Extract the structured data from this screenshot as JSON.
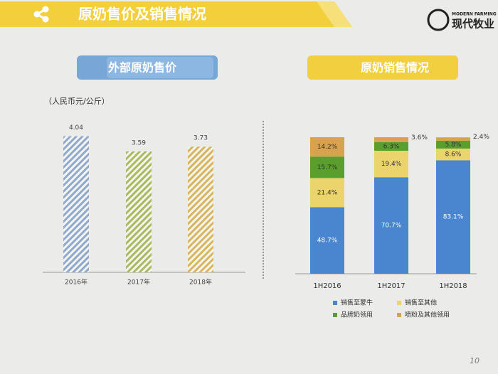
{
  "header": {
    "title": "原奶售价及销售情况",
    "logo_en": "MODERN FARMING",
    "logo_cn": "现代牧业"
  },
  "page_number": "10",
  "chart_data": [
    {
      "type": "bar",
      "title": "外部原奶售价",
      "subtitle": "（人民币元/公斤）",
      "categories": [
        "2016年",
        "2017年",
        "2018年"
      ],
      "values": [
        4.04,
        3.59,
        3.73
      ],
      "colors": [
        "#90a9cc",
        "#a9bb5e",
        "#d9b65c"
      ],
      "ylim": [
        0,
        4.6
      ]
    },
    {
      "type": "stacked_bar",
      "title": "原奶销售情况",
      "categories": [
        "1H2016",
        "1H2017",
        "1H2018"
      ],
      "ylim": [
        0,
        100
      ],
      "series": [
        {
          "name": "销售至蒙牛",
          "color": "#4a86d0",
          "values": [
            48.7,
            70.7,
            83.1
          ],
          "value_labels": [
            "48.7%",
            "70.7%",
            "83.1%"
          ]
        },
        {
          "name": "销售至其他",
          "color": "#ecd46c",
          "values": [
            21.4,
            19.4,
            8.6
          ],
          "value_labels": [
            "21.4%",
            "19.4%",
            "8.6%"
          ]
        },
        {
          "name": "品牌奶领用",
          "color": "#5a9e2e",
          "values": [
            15.7,
            6.3,
            5.8
          ],
          "value_labels": [
            "15.7%",
            "6.3%",
            "5.8%"
          ]
        },
        {
          "name": "喷粉及其他领用",
          "color": "#d9a24f",
          "values": [
            14.2,
            3.6,
            2.4
          ],
          "value_labels": [
            "14.2%",
            "3.6%",
            "2.4%"
          ]
        }
      ]
    }
  ]
}
